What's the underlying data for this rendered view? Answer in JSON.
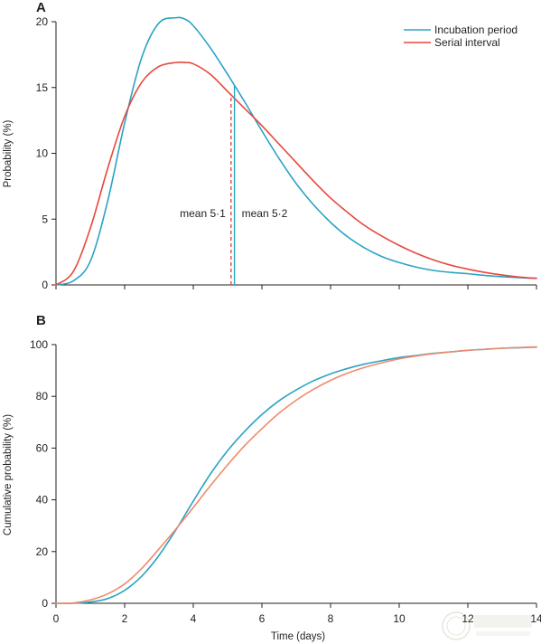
{
  "chart_data": [
    {
      "panel": "A",
      "type": "line",
      "ylabel": "Probability (%)",
      "xlim": [
        0,
        14
      ],
      "ylim": [
        0,
        20
      ],
      "yticks": [
        "0",
        "5",
        "10",
        "15",
        "20"
      ],
      "legend_placement": "top-right",
      "series": [
        {
          "name": "Incubation period",
          "color": "#2aa3c4",
          "x": [
            0,
            0.5,
            1,
            1.5,
            2,
            2.5,
            3,
            3.5,
            3.75,
            4,
            4.5,
            5,
            5.5,
            6,
            6.5,
            7,
            7.5,
            8,
            8.5,
            9,
            9.5,
            10,
            10.5,
            11,
            11.5,
            12,
            12.5,
            13,
            13.5,
            14
          ],
          "y": [
            0,
            0.3,
            1.8,
            6.3,
            12.3,
            17.3,
            19.9,
            20.3,
            20.2,
            19.7,
            18.0,
            16.0,
            13.9,
            11.7,
            9.6,
            7.7,
            6.1,
            4.75,
            3.65,
            2.8,
            2.15,
            1.7,
            1.35,
            1.1,
            0.95,
            0.85,
            0.72,
            0.62,
            0.55,
            0.5
          ]
        },
        {
          "name": "Serial interval",
          "color": "#e8473c",
          "x": [
            0,
            0.5,
            1,
            1.5,
            2,
            2.5,
            3,
            3.5,
            3.75,
            4,
            4.5,
            5,
            5.5,
            6,
            6.5,
            7,
            7.5,
            8,
            8.5,
            9,
            9.5,
            10,
            10.5,
            11,
            11.5,
            12,
            12.5,
            13,
            13.5,
            14
          ],
          "y": [
            0,
            1.0,
            4.3,
            8.8,
            12.8,
            15.4,
            16.6,
            16.9,
            16.9,
            16.8,
            16.0,
            14.7,
            13.4,
            12.1,
            10.7,
            9.3,
            7.9,
            6.6,
            5.5,
            4.5,
            3.7,
            3.0,
            2.4,
            1.9,
            1.5,
            1.2,
            0.95,
            0.75,
            0.6,
            0.5
          ]
        }
      ],
      "mean_lines": [
        {
          "value": 5.2,
          "color": "#2aa3c4",
          "dashed": false,
          "label": "mean  5·2"
        },
        {
          "value": 5.1,
          "color": "#e8473c",
          "dashed": true,
          "label": "mean  5·1"
        }
      ]
    },
    {
      "panel": "B",
      "type": "line",
      "xlabel": "Time (days)",
      "ylabel": "Cumulative probability (%)",
      "xlim": [
        0,
        14
      ],
      "ylim": [
        0,
        100
      ],
      "xticks": [
        "0",
        "2",
        "4",
        "6",
        "8",
        "10",
        "12",
        "14"
      ],
      "yticks": [
        "0",
        "20",
        "40",
        "60",
        "80",
        "100"
      ],
      "series": [
        {
          "name": "Incubation period",
          "color": "#2aa3c4",
          "x": [
            0,
            0.5,
            1,
            1.5,
            2,
            2.5,
            3,
            3.5,
            4,
            4.5,
            5,
            5.5,
            6,
            6.5,
            7,
            7.5,
            8,
            8.5,
            9,
            9.5,
            10,
            10.5,
            11,
            11.5,
            12,
            12.5,
            13,
            13.5,
            14
          ],
          "y": [
            0,
            0,
            0.5,
            1.8,
            5.0,
            10.5,
            18.5,
            28.5,
            39.5,
            50.0,
            59.0,
            66.5,
            73.0,
            78.3,
            82.5,
            86.0,
            88.7,
            90.8,
            92.5,
            93.8,
            95.0,
            95.8,
            96.6,
            97.2,
            97.8,
            98.2,
            98.6,
            98.8,
            99.0
          ]
        },
        {
          "name": "Serial interval",
          "color": "#f08a6b",
          "x": [
            0,
            0.5,
            1,
            1.5,
            2,
            2.5,
            3,
            3.5,
            4,
            4.5,
            5,
            5.5,
            6,
            6.5,
            7,
            7.5,
            8,
            8.5,
            9,
            9.5,
            10,
            10.5,
            11,
            11.5,
            12,
            12.5,
            13,
            13.5,
            14
          ],
          "y": [
            0,
            0.1,
            1.3,
            3.6,
            7.5,
            13.5,
            21.0,
            28.8,
            37.0,
            45.5,
            53.5,
            61.0,
            67.5,
            73.5,
            78.5,
            82.7,
            86.2,
            89.0,
            91.2,
            93.0,
            94.5,
            95.6,
            96.5,
            97.2,
            97.8,
            98.2,
            98.6,
            98.9,
            99.1
          ]
        }
      ]
    }
  ]
}
